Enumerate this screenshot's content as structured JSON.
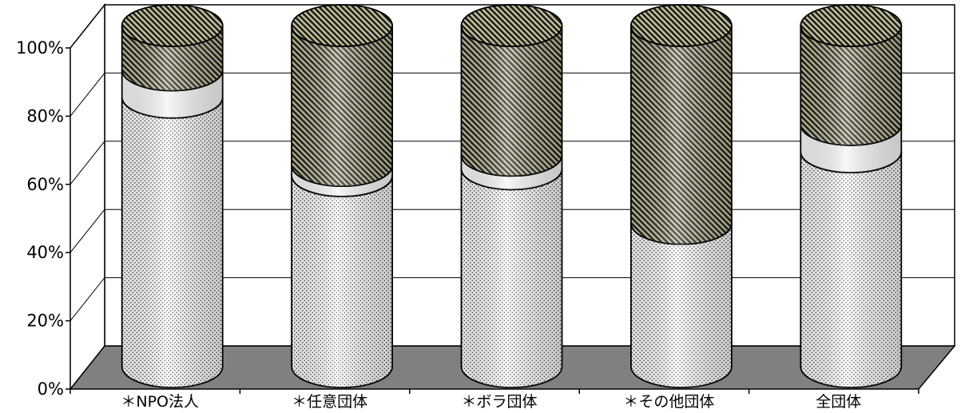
{
  "chart_data": {
    "type": "bar",
    "style": "3d-stacked-100%-cylinder",
    "categories": [
      "＊NPO法人",
      "＊任意団体",
      "＊ボラ団体",
      "＊その他団体",
      "全団体"
    ],
    "series": [
      {
        "values": [
          79,
          56,
          58,
          42,
          63
        ],
        "pattern": "dots",
        "color": "#d9d9d9"
      },
      {
        "values": [
          8,
          3,
          4,
          0,
          8
        ],
        "pattern": "plain",
        "color": "#f4f4f4"
      },
      {
        "values": [
          13,
          41,
          38,
          58,
          29
        ],
        "pattern": "diagonal-stripes",
        "color": "#8a8560"
      }
    ],
    "y_ticks": [
      "0%",
      "20%",
      "40%",
      "60%",
      "80%",
      "100%"
    ],
    "ylim": [
      0,
      100
    ],
    "grid": true,
    "legend": "none",
    "colors": {
      "floor": "#808080",
      "back_wall": "#ffffff",
      "gridline": "#000000"
    }
  }
}
